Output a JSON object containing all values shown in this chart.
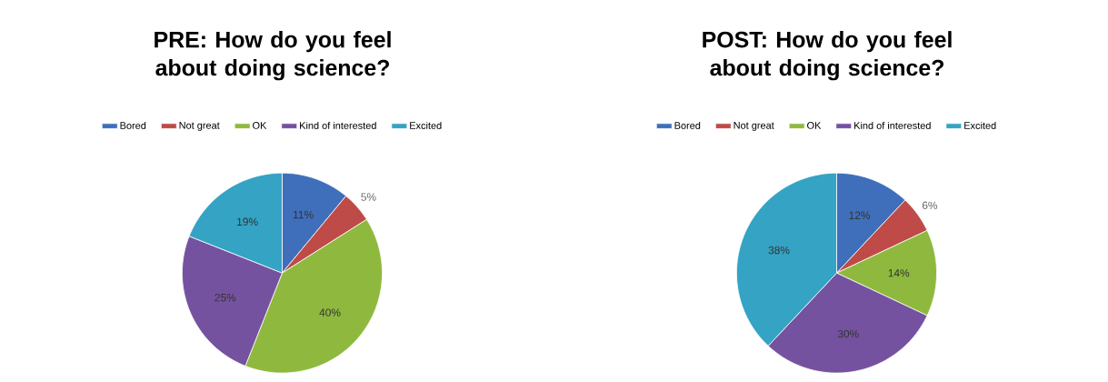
{
  "chart_data": [
    {
      "type": "pie",
      "title": "PRE: How do you feel about doing science?",
      "categories": [
        "Bored",
        "Not great",
        "OK",
        "Kind of interested",
        "Excited"
      ],
      "values": [
        11,
        5,
        40,
        25,
        19
      ],
      "value_labels": [
        "11%",
        "5%",
        "40%",
        "25%",
        "19%"
      ],
      "colors": [
        "#3f6fbb",
        "#be4b48",
        "#8fb93e",
        "#7552a0",
        "#34a3c4"
      ],
      "legend": "top"
    },
    {
      "type": "pie",
      "title": "POST: How do you feel about doing science?",
      "categories": [
        "Bored",
        "Not great",
        "OK",
        "Kind of interested",
        "Excited"
      ],
      "values": [
        12,
        6,
        14,
        30,
        38
      ],
      "value_labels": [
        "12%",
        "6%",
        "14%",
        "30%",
        "38%"
      ],
      "colors": [
        "#3f6fbb",
        "#be4b48",
        "#8fb93e",
        "#7552a0",
        "#34a3c4"
      ],
      "legend": "top"
    }
  ]
}
